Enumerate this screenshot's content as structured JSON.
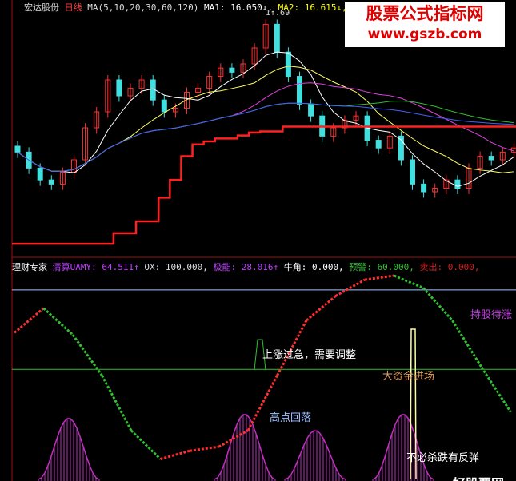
{
  "header": {
    "stock": "宏达股份",
    "period": "日线",
    "ma_def": "MA(5,10,20,30,60,120)",
    "ma1": "MA1: 16.050↓,",
    "ma2": "MA2: 16.615↓,",
    "low_mark": "1↑.69"
  },
  "indicator": {
    "name": "理财专家",
    "a_label": "清算UAMY:",
    "a_value": "64.511↑",
    "ox": "OX: 100.000,",
    "b_label": "极能:",
    "b_value": "28.016↑",
    "c": "牛角: 0.000,",
    "d_label": "预警:",
    "d_value": "60.000,",
    "e_label": "卖出:",
    "e_value": "0.000,"
  },
  "annotations": {
    "hold": "持股待涨",
    "rise_fast": "上涨过急，需要调整",
    "big_money": "大资金进场",
    "high_fall": "高点回落",
    "no_panic": "不必杀跌有反弹",
    "bottom_cut": "好股票网"
  },
  "watermark": {
    "title": "股票公式指标网",
    "url": "www.gszb.com"
  },
  "colors": {
    "up": "#ff3030",
    "down": "#40e0e0",
    "support": "#ff2020",
    "osc_up": "#ff3030",
    "osc_down": "#30c030",
    "hump": "#c030c0",
    "level_high": "#a0c8ff",
    "level_mid": "#30c030"
  },
  "chart_data": [
    {
      "type": "candlestick",
      "ylim": [
        13.62,
        17.94
      ],
      "close": [
        15.37,
        15.1,
        14.9,
        14.83,
        15.03,
        15.24,
        15.78,
        16.05,
        16.59,
        16.32,
        16.45,
        16.59,
        16.25,
        16.05,
        16.11,
        16.38,
        16.45,
        16.65,
        16.79,
        16.72,
        16.86,
        17.13,
        17.53,
        17.06,
        16.65,
        16.18,
        15.98,
        15.64,
        15.78,
        15.91,
        15.98,
        15.57,
        15.44,
        15.64,
        15.24,
        14.83,
        14.7,
        14.76,
        14.9,
        14.76,
        15.1,
        15.3,
        15.24,
        15.37,
        15.44
      ],
      "support": [
        13.82,
        13.82,
        13.82,
        13.82,
        13.82,
        13.82,
        13.82,
        13.82,
        13.82,
        14.0,
        14.0,
        14.2,
        14.2,
        14.6,
        14.9,
        15.3,
        15.5,
        15.55,
        15.6,
        15.6,
        15.65,
        15.7,
        15.72,
        15.72,
        15.8,
        15.8,
        15.8,
        15.8,
        15.8,
        15.8,
        15.8,
        15.8,
        15.8,
        15.8,
        15.8,
        15.8,
        15.8,
        15.8,
        15.8,
        15.8,
        15.8,
        15.8,
        15.8,
        15.8,
        15.8
      ]
    },
    {
      "type": "line",
      "ylim": [
        0,
        100
      ],
      "x": [
        0,
        1,
        2,
        3,
        4,
        5,
        6,
        7,
        8,
        9,
        10,
        11,
        12,
        13,
        14,
        15,
        16,
        17
      ],
      "oscillator": [
        72,
        84,
        71,
        51,
        24,
        10,
        14,
        16,
        24,
        51,
        78,
        90,
        98,
        100,
        94,
        78,
        55,
        33
      ],
      "levels": [
        93,
        54
      ],
      "humps": [
        {
          "center": 3,
          "height": 30
        },
        {
          "center": 13,
          "height": 32
        },
        {
          "center": 17,
          "height": 24
        },
        {
          "center": 22,
          "height": 32
        }
      ]
    }
  ]
}
